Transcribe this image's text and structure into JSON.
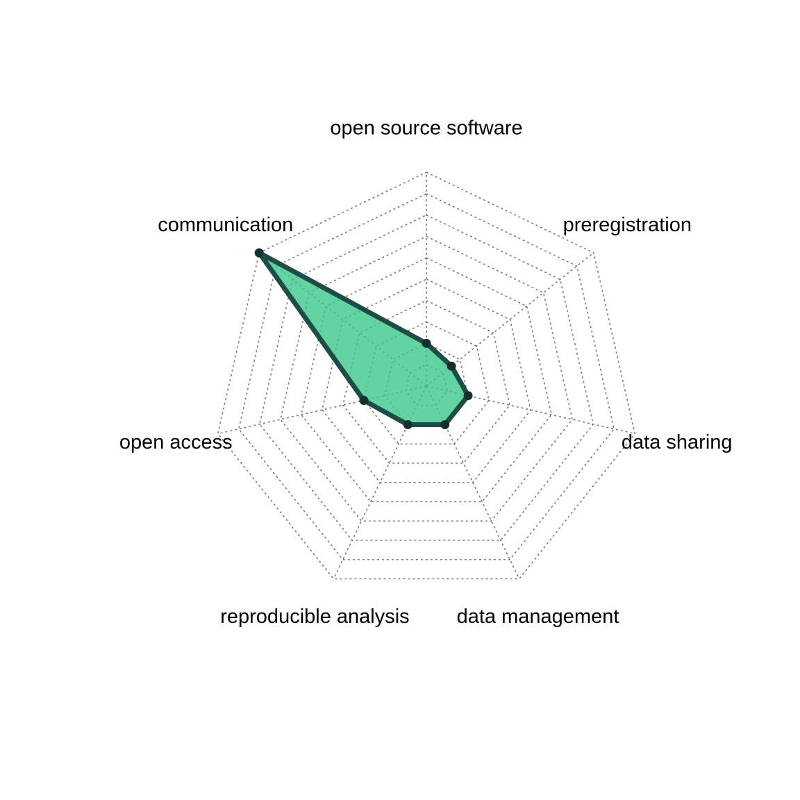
{
  "chart_data": {
    "type": "radar",
    "categories": [
      "open source software",
      "preregistration",
      "data sharing",
      "data management",
      "reproducible analysis",
      "open access",
      "communication"
    ],
    "series": [
      {
        "values": [
          0.2,
          0.15,
          0.2,
          0.2,
          0.2,
          0.3,
          1.0
        ]
      }
    ],
    "ylim": [
      0,
      1
    ],
    "grid_rings": 10,
    "grid": true,
    "colors": {
      "fill": "#3CC98A",
      "stroke": "#1E4D47",
      "marker": "#14302E",
      "grid": "#7a7a7a",
      "label": "#000000"
    }
  }
}
